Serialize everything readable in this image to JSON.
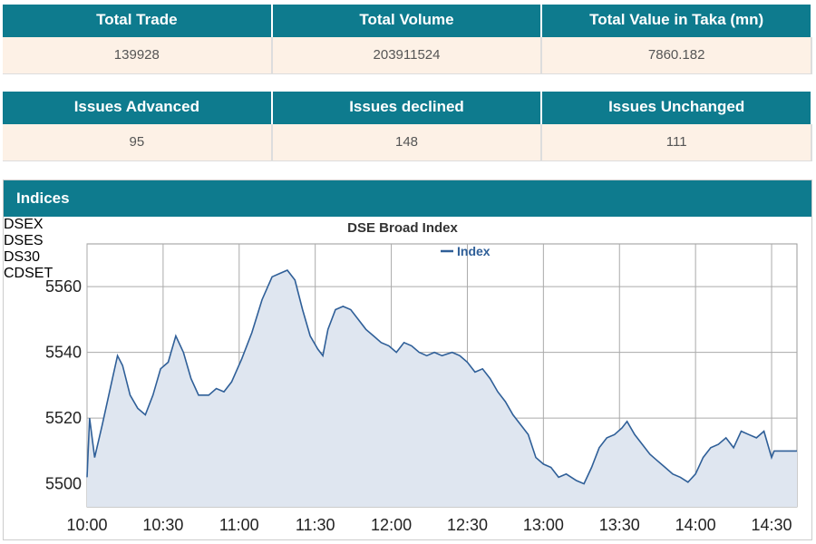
{
  "stats": {
    "headers": [
      "Total Trade",
      "Total Volume",
      "Total Value in Taka (mn)"
    ],
    "values": [
      "139928",
      "203911524",
      "7860.182"
    ]
  },
  "issues": {
    "headers": [
      "Issues Advanced",
      "Issues declined",
      "Issues Unchanged"
    ],
    "values": [
      "95",
      "148",
      "111"
    ]
  },
  "indices": {
    "title": "Indices",
    "tabs": [
      "DSEX",
      "DSES",
      "DS30",
      "CDSET"
    ]
  },
  "chart_data": {
    "type": "line",
    "title": "DSE Broad Index",
    "x": [
      600,
      601,
      603,
      606,
      610,
      612,
      614,
      617,
      620,
      623,
      626,
      629,
      632,
      635,
      638,
      641,
      644,
      648,
      651,
      654,
      657,
      661,
      665,
      669,
      673,
      676,
      679,
      682,
      685,
      688,
      691,
      693,
      695,
      698,
      701,
      704,
      707,
      710,
      713,
      716,
      719,
      722,
      725,
      728,
      731,
      734,
      737,
      740,
      744,
      747,
      750,
      753,
      756,
      759,
      762,
      765,
      768,
      771,
      774,
      777,
      780,
      783,
      786,
      789,
      793,
      796,
      799,
      802,
      805,
      808,
      811,
      813,
      816,
      819,
      822,
      825,
      828,
      831,
      834,
      837,
      840,
      843,
      846,
      849,
      852,
      855,
      858,
      861,
      864,
      867,
      870,
      871,
      880
    ],
    "series": [
      {
        "name": "Index",
        "color": "#2f5f98",
        "values": [
          5502,
          5520,
          5508,
          5518,
          5532,
          5539,
          5536,
          5527,
          5523,
          5521,
          5527,
          5535,
          5537,
          5545,
          5540,
          5532,
          5527,
          5527,
          5529,
          5528,
          5531,
          5538,
          5546,
          5556,
          5563,
          5564,
          5565,
          5562,
          5553,
          5545,
          5541,
          5539,
          5547,
          5553,
          5554,
          5553,
          5550,
          5547,
          5545,
          5543,
          5542,
          5540,
          5543,
          5542,
          5540,
          5539,
          5540,
          5539,
          5540,
          5539,
          5537,
          5534,
          5535,
          5532,
          5528,
          5525,
          5521,
          5518,
          5515,
          5508,
          5506,
          5505,
          5502,
          5503,
          5501,
          5500,
          5505,
          5511,
          5514,
          5515,
          5517,
          5519,
          5515,
          5512,
          5509,
          5507,
          5505,
          5503,
          5502,
          5500.5,
          5503,
          5508,
          5511,
          5512,
          5514,
          5511,
          5516,
          5515,
          5514,
          5516,
          5508,
          5510,
          5510
        ]
      }
    ],
    "xlim": [
      600,
      880
    ],
    "xticks": [
      {
        "value": 600,
        "label": "10:00"
      },
      {
        "value": 630,
        "label": "10:30"
      },
      {
        "value": 660,
        "label": "11:00"
      },
      {
        "value": 690,
        "label": "11:30"
      },
      {
        "value": 720,
        "label": "12:00"
      },
      {
        "value": 750,
        "label": "12:30"
      },
      {
        "value": 780,
        "label": "13:00"
      },
      {
        "value": 810,
        "label": "13:30"
      },
      {
        "value": 840,
        "label": "14:00"
      },
      {
        "value": 870,
        "label": "14:30"
      }
    ],
    "ylim": [
      5493,
      5573
    ],
    "yticks": [
      5500,
      5520,
      5540,
      5560
    ],
    "grid": true
  }
}
